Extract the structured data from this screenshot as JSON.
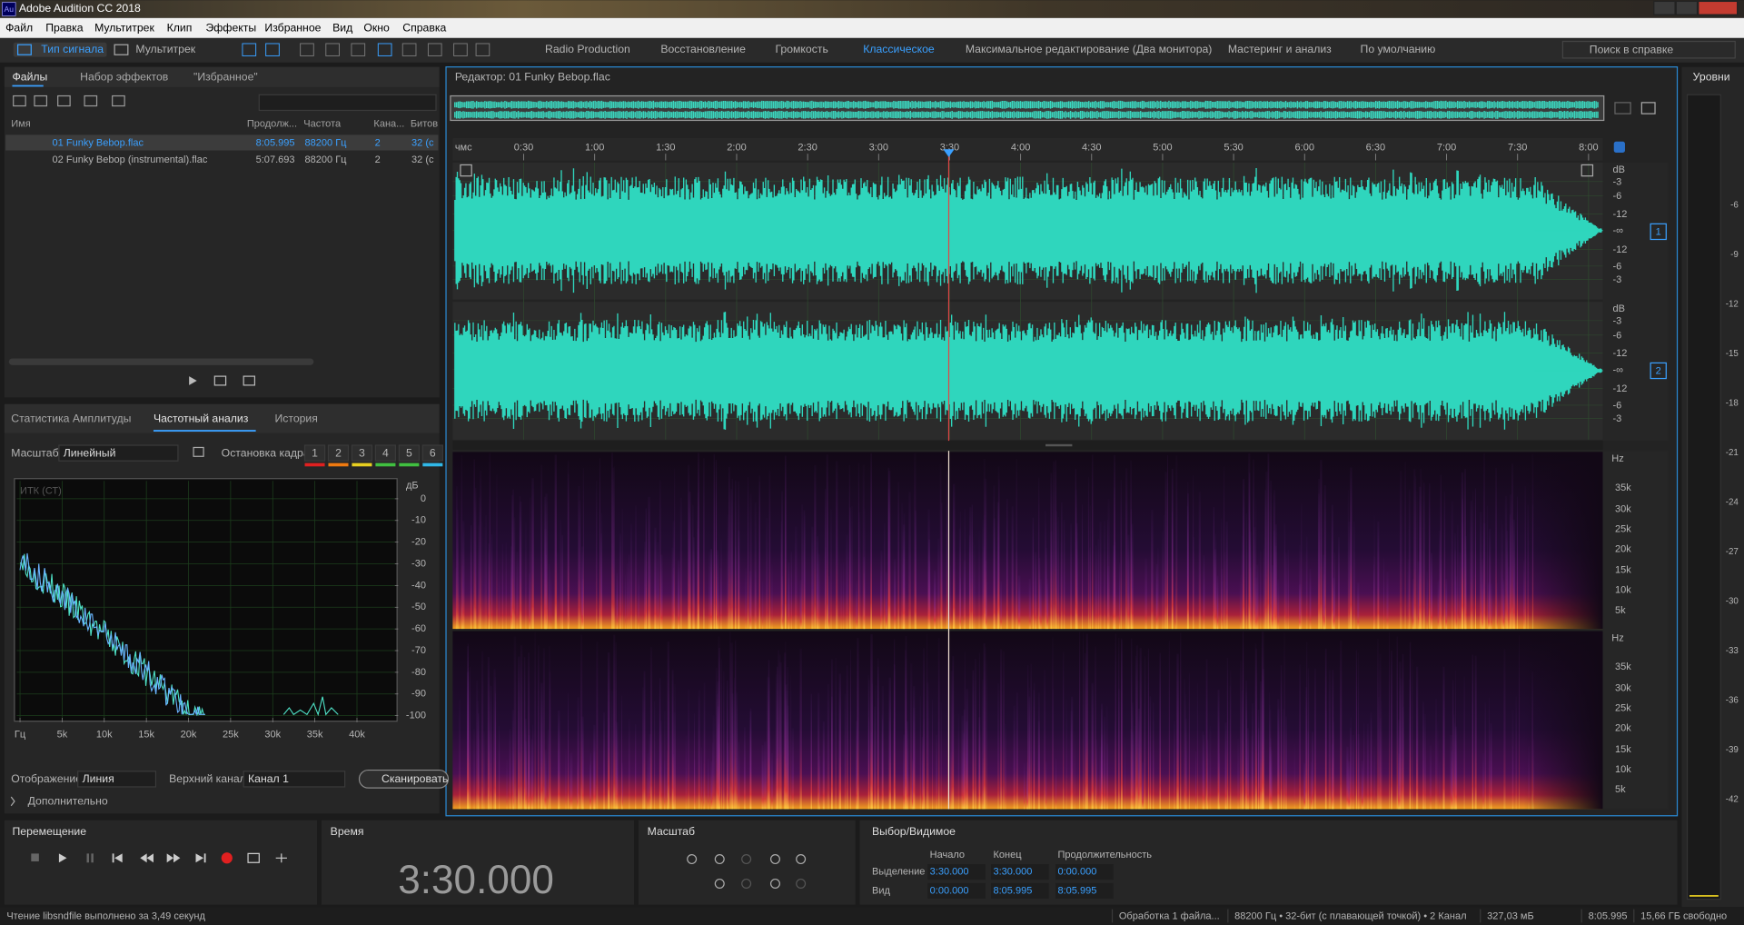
{
  "title_bar": {
    "icon": "Au",
    "title": "Adobe Audition CC 2018"
  },
  "menu": [
    "Файл",
    "Правка",
    "Мультитрек",
    "Клип",
    "Эффекты",
    "Избранное",
    "Вид",
    "Окно",
    "Справка"
  ],
  "toolbar": {
    "modes": [
      "Тип сигнала",
      "Мультитрек"
    ],
    "workspaces": [
      "Radio Production",
      "Восстановление",
      "Громкость",
      "Классическое",
      "Максимальное редактирование (Два монитора)",
      "Мастеринг и анализ",
      "По умолчанию"
    ],
    "search": "Поиск в справке"
  },
  "files_panel": {
    "tabs": [
      "Файлы",
      "Набор эффектов",
      "\"Избранное\""
    ],
    "columns": [
      "Имя",
      "Продолж...",
      "Частота",
      "Кана...",
      "Битов"
    ],
    "rows": [
      [
        "01 Funky Bebop.flac",
        "8:05.995",
        "88200 Гц",
        "2",
        "32 (с"
      ],
      [
        "02 Funky Bebop (instrumental).flac",
        "5:07.693",
        "88200 Гц",
        "2",
        "32 (с"
      ]
    ]
  },
  "analysis_panel": {
    "tabs": [
      "Статистика Амплитуды",
      "Частотный анализ",
      "История"
    ],
    "scale_label": "Масштаб:",
    "scale_value": "Линейный",
    "freeze_label": "Остановка кадра:",
    "freeze_buttons": [
      "1",
      "2",
      "3",
      "4",
      "5",
      "6"
    ],
    "chart": {
      "label": "ИТК (СТ)",
      "y_unit": "дБ",
      "ylim": [
        -101,
        8
      ],
      "yticks": [
        0,
        -10,
        -20,
        -30,
        -40,
        -50,
        -60,
        -70,
        -80,
        -90,
        -100
      ],
      "xlim": [
        0,
        44100
      ],
      "xticks": [
        {
          "value": 0,
          "label": "Гц"
        },
        {
          "value": 5000,
          "label": "5k"
        },
        {
          "value": 10000,
          "label": "10k"
        },
        {
          "value": 15000,
          "label": "15k"
        },
        {
          "value": 20000,
          "label": "20k"
        },
        {
          "value": 25000,
          "label": "25k"
        },
        {
          "value": 30000,
          "label": "30k"
        },
        {
          "value": 35000,
          "label": "35k"
        },
        {
          "value": 40000,
          "label": "40k"
        }
      ]
    },
    "display_label": "Отображение:",
    "display_value": "Линия",
    "channel_label": "Верхний канал:",
    "channel_value": "Канал 1",
    "scan": "Сканировать",
    "advanced": "Дополнительно"
  },
  "editor": {
    "title": "Редактор: 01 Funky Bebop.flac",
    "ruler_unit": "чмс",
    "xlim": [
      0,
      485.995
    ],
    "xticks": [
      {
        "value": 30,
        "label": "0:30"
      },
      {
        "value": 60,
        "label": "1:00"
      },
      {
        "value": 90,
        "label": "1:30"
      },
      {
        "value": 120,
        "label": "2:00"
      },
      {
        "value": 150,
        "label": "2:30"
      },
      {
        "value": 180,
        "label": "3:00"
      },
      {
        "value": 210,
        "label": "3:30"
      },
      {
        "value": 240,
        "label": "4:00"
      },
      {
        "value": 270,
        "label": "4:30"
      },
      {
        "value": 300,
        "label": "5:00"
      },
      {
        "value": 330,
        "label": "5:30"
      },
      {
        "value": 360,
        "label": "6:00"
      },
      {
        "value": 390,
        "label": "6:30"
      },
      {
        "value": 420,
        "label": "7:00"
      },
      {
        "value": 450,
        "label": "7:30"
      },
      {
        "value": 480,
        "label": "8:00"
      }
    ],
    "channels": [
      {
        "number": "1",
        "db_labels": [
          "dB",
          "-3",
          "-6",
          "-12",
          "-∞",
          "-12",
          "-6",
          "-3"
        ]
      },
      {
        "number": "2",
        "db_labels": [
          "dB",
          "-3",
          "-6",
          "-12",
          "-∞",
          "-12",
          "-6",
          "-3"
        ]
      }
    ],
    "spectrogram_labels": [
      "Hz",
      "35k",
      "30k",
      "25k",
      "20k",
      "15k",
      "10k",
      "5k"
    ]
  },
  "levels": {
    "title": "Уровни",
    "scale": [
      -6,
      -9,
      -12,
      -15,
      -18,
      -21,
      -24,
      -27,
      -30,
      -33,
      -36,
      -39,
      -42
    ]
  },
  "transport": {
    "title": "Перемещение"
  },
  "time": {
    "title": "Время",
    "value": "3:30.000"
  },
  "zoom": {
    "title": "Масштаб"
  },
  "selection": {
    "title": "Выбор/Видимое",
    "columns": [
      "Начало",
      "Конец",
      "Продолжительность"
    ],
    "rows": [
      {
        "label": "Выделение",
        "values": [
          "3:30.000",
          "3:30.000",
          "0:00.000"
        ]
      },
      {
        "label": "Вид",
        "values": [
          "0:00.000",
          "8:05.995",
          "8:05.995"
        ]
      }
    ]
  },
  "status_bar": [
    "Чтение libsndfile выполнено за 3,49 секунд",
    "Обработка 1 файла...",
    "88200 Гц • 32-бит (с плавающей точкой) • 2 Канал",
    "327,03 мБ",
    "8:05.995",
    "15,66 ГБ свободно"
  ]
}
